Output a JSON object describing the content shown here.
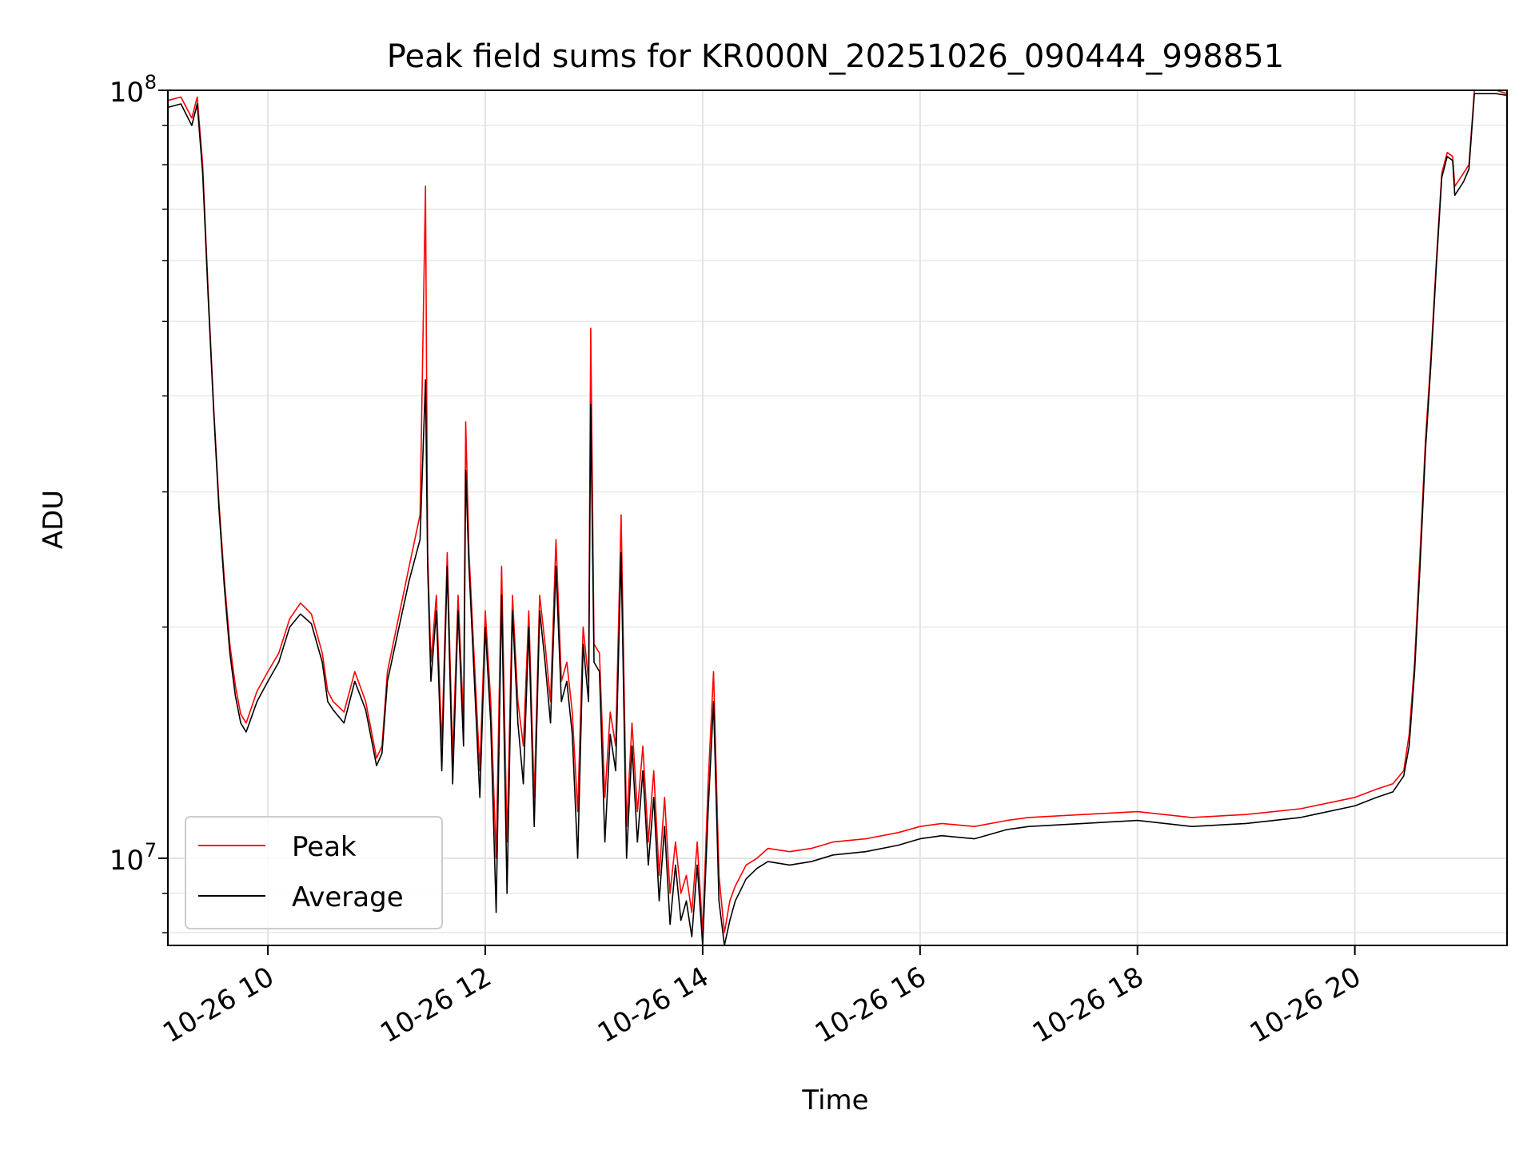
{
  "chart_data": {
    "type": "line",
    "title": "Peak field sums for KR000N_20251026_090444_998851",
    "xlabel": "Time",
    "ylabel": "ADU",
    "yscale": "log",
    "ylim": [
      7700000,
      100000000
    ],
    "xlim_hours": [
      9.08,
      21.4
    ],
    "x_ticks": [
      {
        "hour": 10,
        "label": "10-26 10"
      },
      {
        "hour": 12,
        "label": "10-26 12"
      },
      {
        "hour": 14,
        "label": "10-26 14"
      },
      {
        "hour": 16,
        "label": "10-26 16"
      },
      {
        "hour": 18,
        "label": "10-26 18"
      },
      {
        "hour": 20,
        "label": "10-26 20"
      }
    ],
    "y_ticks": [
      {
        "value": 10000000,
        "base": "10",
        "exp": "7"
      },
      {
        "value": 100000000,
        "base": "10",
        "exp": "8"
      }
    ],
    "grid": true,
    "legend_position": "lower-left",
    "series": [
      {
        "name": "Peak",
        "color": "#ff0000"
      },
      {
        "name": "Average",
        "color": "#000000"
      }
    ],
    "x_hours": [
      9.08,
      9.2,
      9.3,
      9.35,
      9.4,
      9.45,
      9.5,
      9.55,
      9.6,
      9.65,
      9.7,
      9.75,
      9.8,
      9.9,
      10.0,
      10.1,
      10.2,
      10.3,
      10.4,
      10.5,
      10.55,
      10.6,
      10.7,
      10.8,
      10.9,
      11.0,
      11.05,
      11.1,
      11.2,
      11.3,
      11.4,
      11.45,
      11.47,
      11.5,
      11.55,
      11.6,
      11.65,
      11.7,
      11.75,
      11.8,
      11.82,
      11.85,
      11.9,
      11.95,
      12.0,
      12.05,
      12.1,
      12.15,
      12.2,
      12.25,
      12.3,
      12.35,
      12.4,
      12.45,
      12.5,
      12.55,
      12.6,
      12.65,
      12.7,
      12.75,
      12.8,
      12.85,
      12.9,
      12.95,
      12.97,
      13.0,
      13.05,
      13.1,
      13.15,
      13.2,
      13.25,
      13.3,
      13.35,
      13.4,
      13.45,
      13.5,
      13.55,
      13.6,
      13.65,
      13.7,
      13.75,
      13.8,
      13.85,
      13.9,
      13.95,
      14.0,
      14.05,
      14.1,
      14.15,
      14.2,
      14.25,
      14.3,
      14.4,
      14.5,
      14.6,
      14.8,
      15.0,
      15.2,
      15.5,
      15.8,
      16.0,
      16.2,
      16.5,
      16.8,
      17.0,
      17.5,
      18.0,
      18.5,
      19.0,
      19.5,
      20.0,
      20.2,
      20.35,
      20.45,
      20.5,
      20.55,
      20.6,
      20.65,
      20.7,
      20.75,
      20.8,
      20.85,
      20.9,
      20.92,
      21.0,
      21.05,
      21.1,
      21.2,
      21.3,
      21.4
    ],
    "peak_values": [
      97000000,
      98000000,
      92000000,
      98000000,
      80000000,
      55000000,
      39000000,
      29000000,
      23000000,
      19000000,
      16800000,
      15400000,
      15000000,
      16500000,
      17500000,
      18500000,
      20500000,
      21500000,
      20800000,
      18500000,
      16500000,
      16000000,
      15500000,
      17500000,
      16000000,
      13500000,
      14000000,
      17500000,
      20500000,
      24000000,
      28000000,
      75000000,
      25000000,
      18000000,
      22000000,
      14000000,
      25000000,
      13500000,
      22000000,
      15000000,
      37000000,
      25000000,
      18000000,
      13000000,
      21000000,
      16000000,
      10000000,
      24000000,
      10500000,
      22000000,
      16000000,
      14000000,
      21000000,
      12000000,
      22000000,
      19000000,
      16000000,
      26000000,
      17000000,
      18000000,
      15500000,
      11500000,
      20000000,
      17000000,
      49000000,
      19000000,
      18500000,
      12000000,
      15500000,
      14000000,
      28000000,
      11000000,
      15000000,
      11500000,
      14000000,
      10500000,
      13000000,
      9500000,
      12000000,
      9000000,
      10500000,
      9000000,
      9500000,
      8500000,
      10500000,
      8000000,
      12500000,
      17500000,
      9500000,
      8000000,
      8800000,
      9200000,
      9800000,
      10000000,
      10300000,
      10200000,
      10300000,
      10500000,
      10600000,
      10800000,
      11000000,
      11100000,
      11000000,
      11200000,
      11300000,
      11400000,
      11500000,
      11300000,
      11400000,
      11600000,
      12000000,
      12300000,
      12500000,
      13000000,
      14500000,
      18000000,
      25000000,
      35000000,
      45000000,
      60000000,
      78000000,
      83000000,
      82000000,
      75000000,
      78000000,
      80000000,
      100000000,
      100000000,
      100000000,
      99000000
    ],
    "average_values": [
      95000000,
      96000000,
      90000000,
      96000000,
      78000000,
      54000000,
      38500000,
      28500000,
      22500000,
      18500000,
      16300000,
      15000000,
      14600000,
      16000000,
      17000000,
      18000000,
      20000000,
      20800000,
      20200000,
      18000000,
      16000000,
      15600000,
      15000000,
      17000000,
      15600000,
      13200000,
      13700000,
      17000000,
      19800000,
      23000000,
      26000000,
      42000000,
      24000000,
      17000000,
      21000000,
      13000000,
      24000000,
      12500000,
      21000000,
      14000000,
      32000000,
      24000000,
      17000000,
      12000000,
      20000000,
      15000000,
      8500000,
      22000000,
      9000000,
      21000000,
      15000000,
      12500000,
      20000000,
      11000000,
      21000000,
      18000000,
      15000000,
      24000000,
      16000000,
      17000000,
      14500000,
      10000000,
      19000000,
      16000000,
      39000000,
      18000000,
      17500000,
      10500000,
      14500000,
      13000000,
      25000000,
      10000000,
      14000000,
      10500000,
      13000000,
      9800000,
      12000000,
      8800000,
      11000000,
      8200000,
      9800000,
      8300000,
      8800000,
      7900000,
      9800000,
      7700000,
      11500000,
      16000000,
      8800000,
      7700000,
      8300000,
      8800000,
      9400000,
      9700000,
      9900000,
      9800000,
      9900000,
      10100000,
      10200000,
      10400000,
      10600000,
      10700000,
      10600000,
      10900000,
      11000000,
      11100000,
      11200000,
      11000000,
      11100000,
      11300000,
      11700000,
      12000000,
      12200000,
      12800000,
      14000000,
      17500000,
      24000000,
      34000000,
      44000000,
      59000000,
      77000000,
      82000000,
      81000000,
      73000000,
      76000000,
      79000000,
      99000000,
      99000000,
      99000000,
      98500000
    ]
  }
}
